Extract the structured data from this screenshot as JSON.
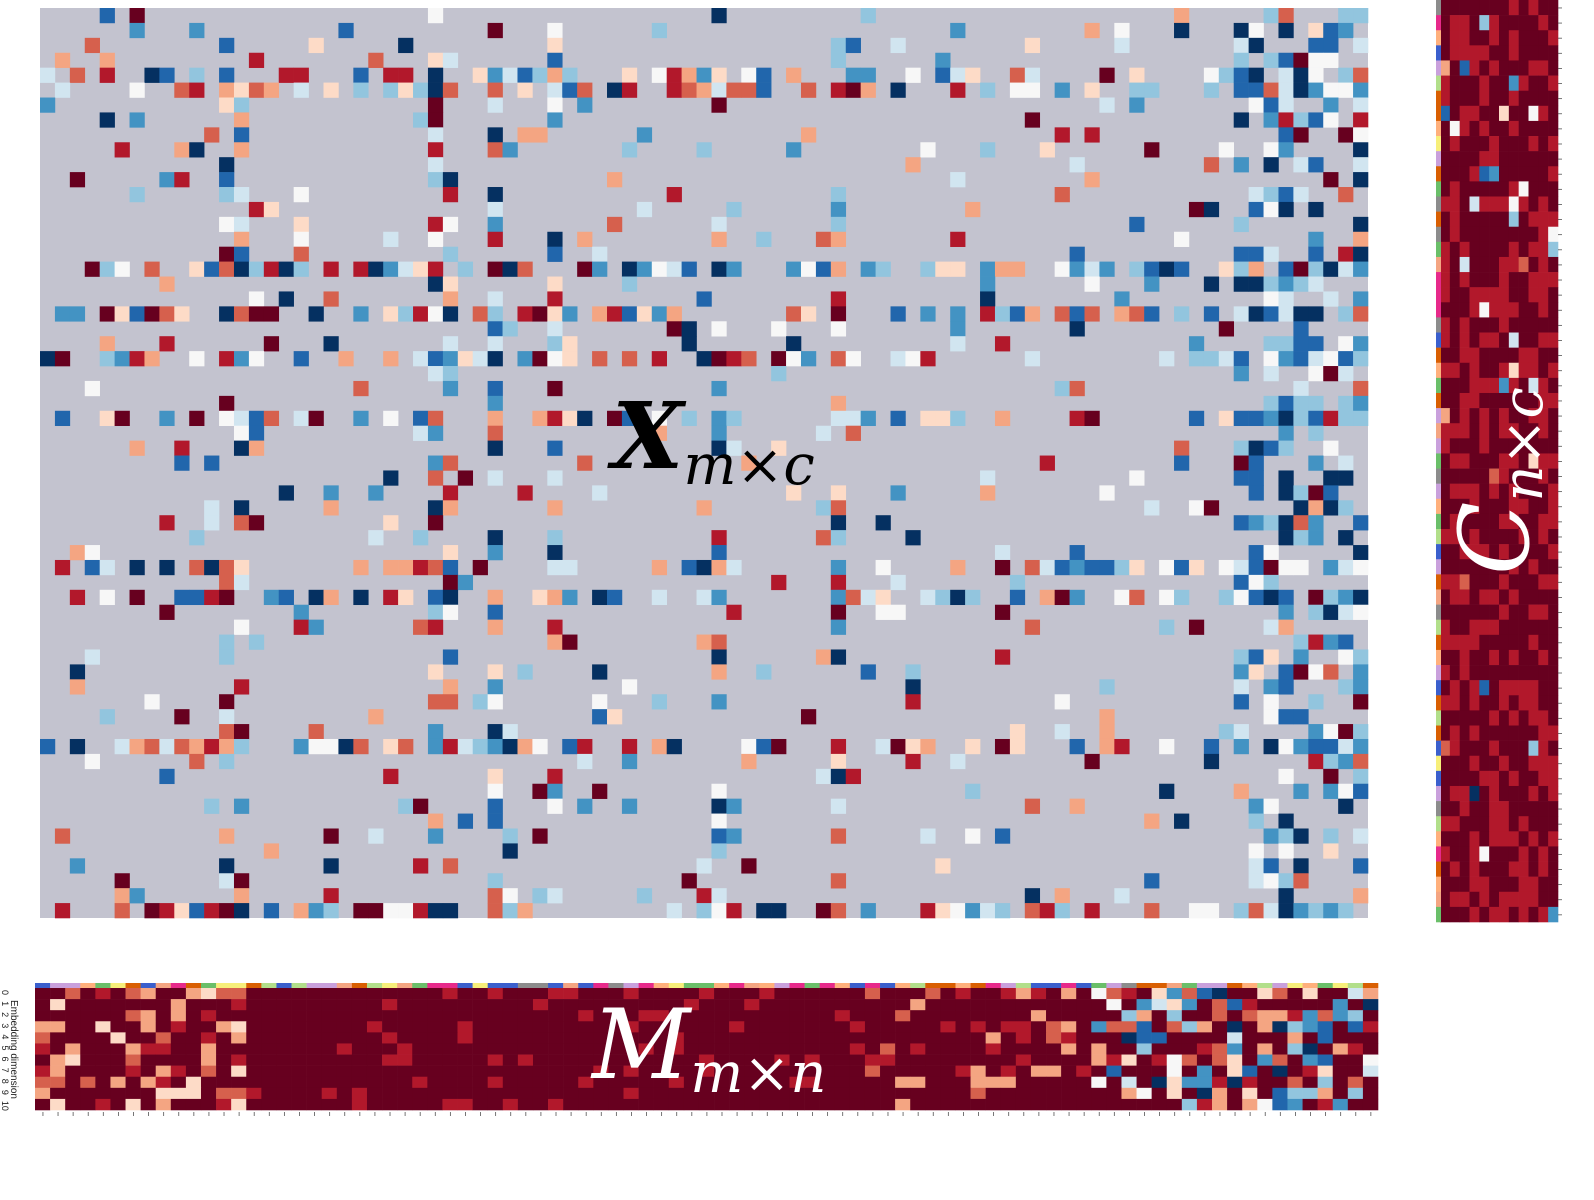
{
  "chart_data": [
    {
      "type": "heatmap",
      "id": "x-matrix",
      "label_main": "X",
      "label_sub": "m×c",
      "rows": 61,
      "cols": 89,
      "colormap": "RdBu",
      "missing_color": "#c3c3cf",
      "note_values": "synthetic cell values; missing cells shown grey"
    },
    {
      "type": "heatmap",
      "id": "c-matrix",
      "label_main": "C",
      "label_sub": "n×c",
      "rows": 61,
      "cols": 12,
      "colormap": "RdBu",
      "has_color_strip": true
    },
    {
      "type": "heatmap",
      "id": "m-matrix",
      "label_main": "M",
      "label_sub": "m×n",
      "rows": 11,
      "cols": 89,
      "colormap": "RdBu",
      "ylabel": "Embedding dimension",
      "yticks": [
        "0",
        "1",
        "2",
        "3",
        "4",
        "5",
        "6",
        "7",
        "8",
        "9",
        "10"
      ],
      "has_color_strip": true
    }
  ],
  "colors": {
    "dark_red": "#67001f",
    "red": "#b2182b",
    "salmon": "#d6604d",
    "peach": "#f4a582",
    "light_peach": "#fddbc7",
    "white": "#f7f7f7",
    "light_blue": "#d1e5f0",
    "sky": "#92c5de",
    "blue": "#4393c3",
    "mid_blue": "#2166ac",
    "navy": "#053061",
    "strip_palette": [
      "#6abf69",
      "#f7ef7a",
      "#e7298a",
      "#b2df8a",
      "#c9a0dc",
      "#d95f02",
      "#f4a582",
      "#8c8c8c",
      "#3a5fcd",
      "#ffb07c"
    ]
  }
}
